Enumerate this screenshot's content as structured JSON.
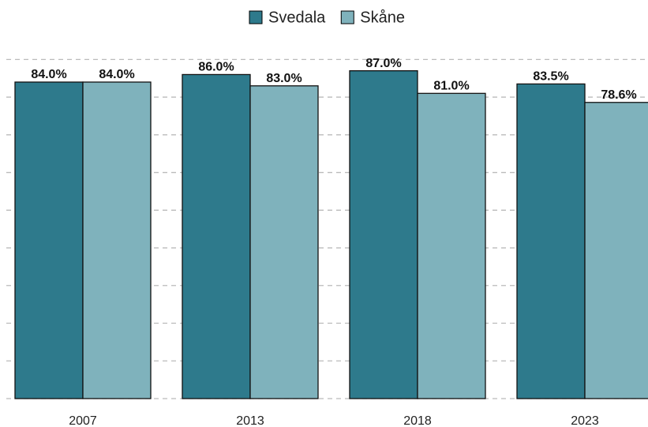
{
  "chart_data": {
    "type": "bar",
    "categories": [
      "2007",
      "2013",
      "2018",
      "2023"
    ],
    "series": [
      {
        "name": "Svedala",
        "color": "#2e7a8c",
        "values": [
          84.0,
          86.0,
          87.0,
          83.5
        ],
        "value_labels": [
          "84.0%",
          "86.0%",
          "87.0%",
          "83.5%"
        ]
      },
      {
        "name": "Skåne",
        "color": "#7fb2bc",
        "values": [
          84.0,
          83.0,
          81.0,
          78.6
        ],
        "value_labels": [
          "84.0%",
          "83.0%",
          "81.0%",
          "78.6%"
        ]
      }
    ],
    "ylim": [
      0,
      95
    ],
    "yticks": [
      0,
      10,
      20,
      30,
      40,
      50,
      60,
      70,
      80,
      90
    ],
    "grid": true,
    "legend": "top"
  }
}
